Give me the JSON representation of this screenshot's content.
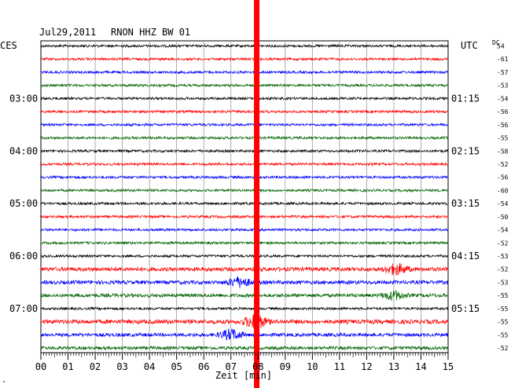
{
  "header": {
    "date": "Jul29,2011",
    "station": "RNON HHZ BW 01",
    "left_zone": "CES",
    "right_zone": "UTC",
    "dc_label": "DC",
    "corner_mark": "\""
  },
  "chart_data": {
    "type": "line",
    "title": "Jul29,2011   RNON HHZ BW 01",
    "xlabel": "Zeit [min]",
    "xlim": [
      0,
      15
    ],
    "x_ticks": [
      "00",
      "01",
      "02",
      "03",
      "04",
      "05",
      "06",
      "07",
      "08",
      "09",
      "10",
      "11",
      "12",
      "13",
      "14",
      "15"
    ],
    "grid": true,
    "trace_colors": [
      "#000000",
      "#ff0000",
      "#0000ff",
      "#006400"
    ],
    "rows_per_hour": 4,
    "left_time_labels": [
      {
        "row": 4,
        "text": "03:00"
      },
      {
        "row": 8,
        "text": "04:00"
      },
      {
        "row": 12,
        "text": "05:00"
      },
      {
        "row": 16,
        "text": "06:00"
      },
      {
        "row": 20,
        "text": "07:00"
      }
    ],
    "right_time_labels": [
      {
        "row": 4,
        "text": "01:15"
      },
      {
        "row": 8,
        "text": "02:15"
      },
      {
        "row": 12,
        "text": "03:15"
      },
      {
        "row": 16,
        "text": "04:15"
      },
      {
        "row": 20,
        "text": "05:15"
      }
    ],
    "dc_offsets": [
      "54",
      "-61",
      "-57",
      "-53",
      "-54",
      "-56",
      "-56",
      "-55",
      "-58",
      "-52",
      "-56",
      "-60",
      "-54",
      "-50",
      "-54",
      "-52",
      "-53",
      "-52",
      "-53",
      "-55",
      "-55",
      "-55",
      "-55",
      "-52"
    ],
    "trace_amplitude": [
      1,
      1,
      1,
      1,
      1,
      1,
      1,
      1,
      1,
      1,
      1,
      1,
      1,
      1,
      1,
      1,
      1,
      1.6,
      1.5,
      1.4,
      1,
      1.7,
      1.4,
      1.3
    ],
    "events": [
      {
        "row": 17,
        "x_min": 13.1,
        "amplitude": 2.2
      },
      {
        "row": 18,
        "x_min": 7.3,
        "amplitude": 2.0
      },
      {
        "row": 19,
        "x_min": 13.0,
        "amplitude": 1.8
      },
      {
        "row": 21,
        "x_min": 7.9,
        "amplitude": 3.0
      },
      {
        "row": 22,
        "x_min": 7.0,
        "amplitude": 2.2
      }
    ],
    "marker": {
      "type": "vertical_line",
      "color": "#ff0000",
      "x_min": 7.95
    }
  }
}
